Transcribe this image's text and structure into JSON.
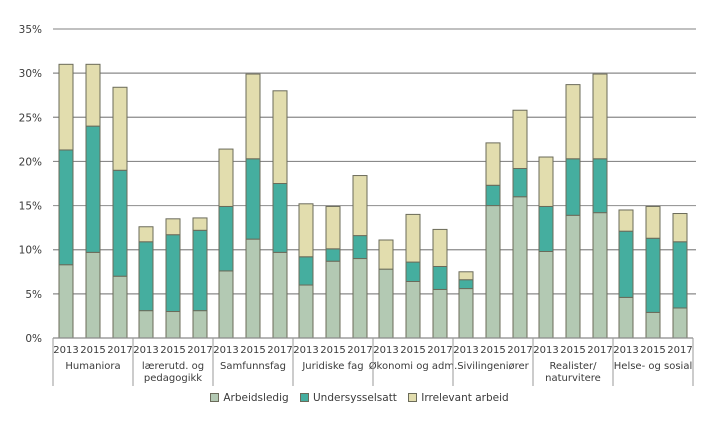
{
  "chart_data": {
    "type": "bar",
    "stacked": true,
    "title": "",
    "xlabel": "",
    "ylabel": "",
    "ylim": [
      0,
      35
    ],
    "yticks": [
      "0%",
      "5%",
      "10%",
      "15%",
      "20%",
      "25%",
      "30%",
      "35%"
    ],
    "ytick_values": [
      0,
      5,
      10,
      15,
      20,
      25,
      30,
      35
    ],
    "grid": true,
    "legend_position": "bottom-center",
    "groups": [
      {
        "label_lines": [
          "Humaniora"
        ],
        "years": [
          "2013",
          "2015",
          "2017"
        ]
      },
      {
        "label_lines": [
          "lærerutd. og",
          "pedagogikk"
        ],
        "years": [
          "2013",
          "2015",
          "2017"
        ]
      },
      {
        "label_lines": [
          "Samfunnsfag"
        ],
        "years": [
          "2013",
          "2015",
          "2017"
        ]
      },
      {
        "label_lines": [
          "Juridiske fag"
        ],
        "years": [
          "2013",
          "2015",
          "2017"
        ]
      },
      {
        "label_lines": [
          "Økonomi og adm."
        ],
        "years": [
          "2013",
          "2015",
          "2017"
        ]
      },
      {
        "label_lines": [
          "Sivilingeniører"
        ],
        "years": [
          "2013",
          "2015",
          "2017"
        ]
      },
      {
        "label_lines": [
          "Realister/",
          "naturvitere"
        ],
        "years": [
          "2013",
          "2015",
          "2017"
        ]
      },
      {
        "label_lines": [
          "Helse- og sosial"
        ],
        "years": [
          "2013",
          "2015",
          "2017"
        ]
      }
    ],
    "categories": [
      "Humaniora 2013",
      "Humaniora 2015",
      "Humaniora 2017",
      "lærerutd. og pedagogikk 2013",
      "lærerutd. og pedagogikk 2015",
      "lærerutd. og pedagogikk 2017",
      "Samfunnsfag 2013",
      "Samfunnsfag 2015",
      "Samfunnsfag 2017",
      "Juridiske fag 2013",
      "Juridiske fag 2015",
      "Juridiske fag 2017",
      "Økonomi og adm. 2013",
      "Økonomi og adm. 2015",
      "Økonomi og adm. 2017",
      "Sivilingeniører 2013",
      "Sivilingeniører 2015",
      "Sivilingeniører 2017",
      "Realister/naturvitere 2013",
      "Realister/naturvitere 2015",
      "Realister/naturvitere 2017",
      "Helse- og sosial 2013",
      "Helse- og sosial 2015",
      "Helse- og sosial 2017"
    ],
    "series": [
      {
        "name": "Arbeidsledig",
        "color": "#b3c9b3",
        "values": [
          8.3,
          9.7,
          7.0,
          3.1,
          3.0,
          3.1,
          7.6,
          11.2,
          9.7,
          6.0,
          8.7,
          9.0,
          7.8,
          6.4,
          5.5,
          5.6,
          15.0,
          16.0,
          9.8,
          13.9,
          14.2,
          4.6,
          2.9,
          3.4
        ]
      },
      {
        "name": "Undersysselsatt",
        "color": "#45ae9f",
        "values": [
          13.0,
          14.3,
          12.0,
          7.8,
          8.7,
          9.1,
          7.3,
          9.1,
          7.8,
          3.2,
          1.4,
          2.6,
          0.0,
          2.2,
          2.6,
          1.0,
          2.3,
          3.2,
          5.1,
          6.4,
          6.1,
          7.5,
          8.4,
          7.5
        ]
      },
      {
        "name": "Irrelevant arbeid",
        "color": "#e2ddae",
        "values": [
          9.7,
          7.0,
          9.4,
          1.7,
          1.8,
          1.4,
          6.5,
          9.6,
          10.5,
          6.0,
          4.8,
          6.8,
          3.3,
          5.4,
          4.2,
          0.9,
          4.8,
          6.6,
          5.6,
          8.4,
          9.6,
          2.4,
          3.6,
          3.2
        ]
      }
    ]
  },
  "legend": {
    "items": [
      {
        "label": "Arbeidsledig",
        "color": "#b3c9b3"
      },
      {
        "label": "Undersysselsatt",
        "color": "#45ae9f"
      },
      {
        "label": "Irrelevant arbeid",
        "color": "#e2ddae"
      }
    ]
  }
}
